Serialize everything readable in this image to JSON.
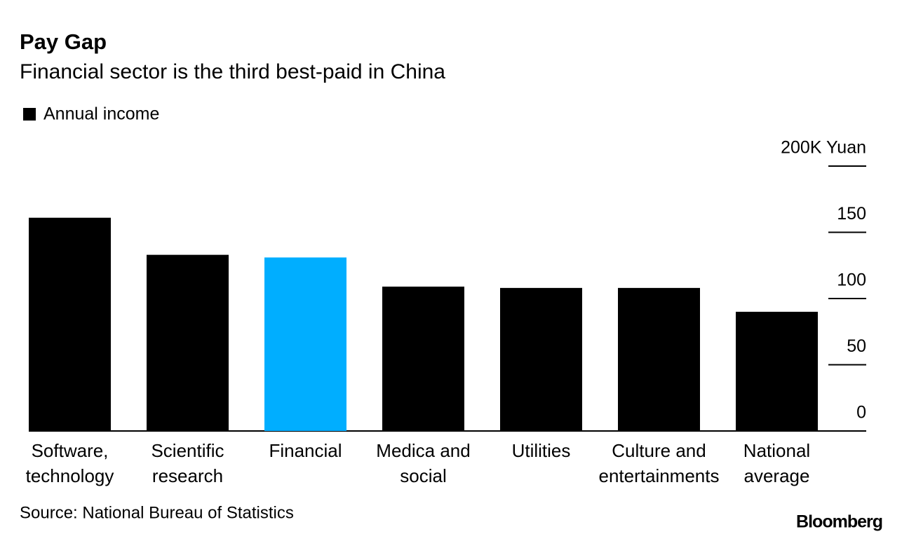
{
  "chart_data": {
    "type": "bar",
    "title": "Pay Gap",
    "subtitle": "Financial sector is the third best-paid in China",
    "categories": [
      [
        "Software,",
        "technology"
      ],
      [
        "Scientific",
        "research"
      ],
      [
        "Financial"
      ],
      [
        "Medica and",
        "social"
      ],
      [
        "Utilities"
      ],
      [
        "Culture and",
        "entertainments"
      ],
      [
        "National",
        "average"
      ]
    ],
    "series": [
      {
        "name": "Annual income",
        "color": "#000000",
        "values": [
          161,
          133,
          131,
          109,
          108,
          108,
          90
        ]
      }
    ],
    "bar_colors": [
      "#000000",
      "#000000",
      "#00aeff",
      "#000000",
      "#000000",
      "#000000",
      "#000000"
    ],
    "ylim": [
      0,
      200
    ],
    "yticks": [
      0,
      50,
      100,
      150,
      {
        "value": 200,
        "label": "200K Yuan"
      }
    ],
    "source": "Source: National Bureau of Statistics",
    "brand": "Bloomberg"
  }
}
